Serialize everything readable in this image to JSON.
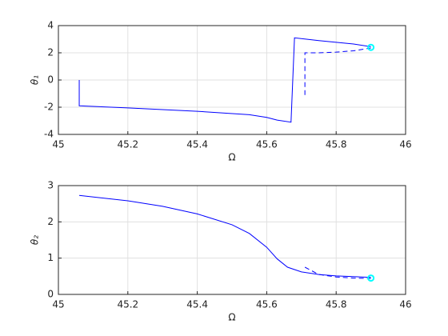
{
  "chart_data": [
    {
      "type": "line",
      "xlabel": "Ω",
      "ylabel": "θ₁",
      "xlim": [
        45,
        46
      ],
      "ylim": [
        -4,
        4
      ],
      "xticks": [
        45,
        45.2,
        45.4,
        45.6,
        45.8,
        46
      ],
      "yticks": [
        -4,
        -2,
        0,
        2,
        4
      ],
      "grid": true,
      "series": [
        {
          "color": "#0000ff",
          "style": "solid",
          "x": [
            45.06,
            45.06,
            45.2,
            45.4,
            45.55,
            45.6,
            45.63,
            45.67,
            45.68,
            45.75,
            45.85,
            45.9
          ],
          "values": [
            0,
            -1.9,
            -2.05,
            -2.3,
            -2.55,
            -2.75,
            -2.95,
            -3.1,
            3.1,
            2.9,
            2.65,
            2.45
          ]
        },
        {
          "color": "#0000ff",
          "style": "dashed",
          "x": [
            45.71,
            45.71,
            45.75,
            45.8,
            45.85,
            45.9
          ],
          "values": [
            -1.1,
            2.0,
            2.0,
            2.05,
            2.15,
            2.35
          ]
        },
        {
          "color": "#00ffff",
          "style": "marker",
          "x": [
            45.9
          ],
          "values": [
            2.4
          ]
        }
      ]
    },
    {
      "type": "line",
      "xlabel": "Ω",
      "ylabel": "θ₂",
      "xlim": [
        45,
        46
      ],
      "ylim": [
        0,
        3
      ],
      "xticks": [
        45,
        45.2,
        45.4,
        45.6,
        45.8,
        46
      ],
      "yticks": [
        0,
        1,
        2,
        3
      ],
      "grid": true,
      "series": [
        {
          "color": "#0000ff",
          "style": "solid",
          "x": [
            45.06,
            45.2,
            45.3,
            45.4,
            45.5,
            45.55,
            45.6,
            45.63,
            45.66,
            45.7,
            45.75,
            45.8,
            45.85,
            45.9
          ],
          "values": [
            2.73,
            2.58,
            2.43,
            2.22,
            1.92,
            1.68,
            1.3,
            0.98,
            0.75,
            0.62,
            0.55,
            0.51,
            0.49,
            0.47
          ]
        },
        {
          "color": "#0000ff",
          "style": "dashed",
          "x": [
            45.71,
            45.75,
            45.8,
            45.85,
            45.9
          ],
          "values": [
            0.75,
            0.55,
            0.48,
            0.45,
            0.44
          ]
        },
        {
          "color": "#00ffff",
          "style": "marker",
          "x": [
            45.9
          ],
          "values": [
            0.45
          ]
        }
      ]
    }
  ]
}
